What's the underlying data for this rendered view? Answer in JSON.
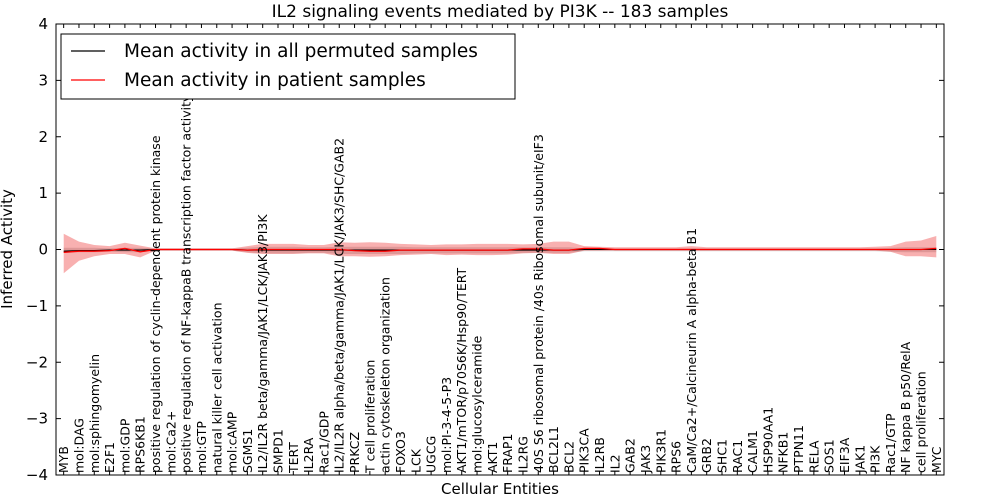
{
  "chart_data": {
    "type": "line",
    "title": "IL2 signaling events mediated by PI3K -- 183 samples",
    "xlabel": "Cellular Entities",
    "ylabel": "Inferred Activity",
    "ylim": [
      -4,
      4
    ],
    "yticks": [
      -4,
      -3,
      -2,
      -1,
      0,
      1,
      2,
      3,
      4
    ],
    "grid": false,
    "legend": {
      "placement": "top-left",
      "entries": [
        {
          "label": "Mean activity in all permuted samples",
          "color": "#000000"
        },
        {
          "label": "Mean activity in patient samples",
          "color": "#ff0000"
        }
      ]
    },
    "categories": [
      "MYB",
      "mol:DAG",
      "mol:sphingomyelin",
      "E2F1",
      "mol:GDP",
      "RPS6KB1",
      "positive regulation of cyclin-dependent protein kinase",
      "mol:Ca2+",
      "positive regulation of NF-kappaB transcription factor activity",
      "mol:GTP",
      "natural killer cell activation",
      "mol:cAMP",
      "SGMS1",
      "IL2/IL2R beta/gamma/JAK1/LCK/JAK3/PI3K",
      "SMPD1",
      "TERT",
      "IL2RA",
      "Rac1/GDP",
      "IL2/IL2R alpha/beta/gamma/JAK1/LCK/JAK3/SHC/GAB2",
      "PRKCZ",
      "T cell proliferation",
      "actin cytoskeleton organization",
      "FOXO3",
      "LCK",
      "UGCG",
      "mol:PI-3-4-5-P3",
      "AKT1/mTOR/p70S6K/Hsp90/TERT",
      "mol:glucosylceramide",
      "AKT1",
      "FRAP1",
      "IL2RG",
      "40S S6 ribosomal protein /40s Ribosomal subunit/eIF3",
      "BCL2L1",
      "BCL2",
      "PIK3CA",
      "IL2RB",
      "IL2",
      "GAB2",
      "JAK3",
      "PIK3R1",
      "RPS6",
      "CaM/Ca2+/Calcineurin A alpha-beta B1",
      "GRB2",
      "SHC1",
      "RAC1",
      "CALM1",
      "HSP90AA1",
      "NFKB1",
      "PTPN11",
      "RELA",
      "SOS1",
      "EIF3A",
      "JAK1",
      "PI3K",
      "Rac1/GTP",
      "NF kappa B p50/RelA",
      "cell proliferation",
      "MYC"
    ],
    "series": [
      {
        "name": "Mean activity in all permuted samples",
        "color": "#000000",
        "values": [
          -0.03,
          -0.02,
          -0.02,
          -0.01,
          -0.01,
          -0.01,
          0,
          0,
          0,
          0,
          0,
          0,
          -0.01,
          -0.01,
          -0.01,
          -0.01,
          -0.01,
          -0.01,
          -0.01,
          -0.01,
          -0.01,
          -0.01,
          -0.01,
          -0.01,
          -0.01,
          -0.01,
          -0.01,
          -0.01,
          -0.01,
          -0.01,
          -0.01,
          -0.01,
          -0.01,
          -0.01,
          0,
          0,
          0,
          0,
          0,
          0,
          0,
          0,
          0,
          0,
          0,
          0,
          0,
          0,
          0,
          0,
          0,
          0,
          0,
          0,
          0,
          0,
          0,
          0
        ],
        "band_low": [
          -0.06,
          -0.05,
          -0.05,
          -0.04,
          -0.05,
          -0.05,
          -0.02,
          -0.02,
          -0.02,
          -0.02,
          -0.02,
          -0.02,
          -0.05,
          -0.07,
          -0.07,
          -0.07,
          -0.06,
          -0.06,
          -0.08,
          -0.08,
          -0.08,
          -0.08,
          -0.08,
          -0.07,
          -0.07,
          -0.07,
          -0.07,
          -0.07,
          -0.07,
          -0.07,
          -0.06,
          -0.06,
          -0.06,
          -0.06,
          -0.03,
          -0.03,
          -0.03,
          -0.03,
          -0.03,
          -0.03,
          -0.03,
          -0.03,
          -0.03,
          -0.03,
          -0.03,
          -0.03,
          -0.03,
          -0.03,
          -0.03,
          -0.03,
          -0.03,
          -0.03,
          -0.03,
          -0.03,
          -0.04,
          -0.05,
          -0.05,
          -0.05
        ],
        "band_high": [
          0.03,
          0.03,
          0.03,
          0.02,
          0.03,
          0.03,
          0.02,
          0.02,
          0.02,
          0.02,
          0.02,
          0.02,
          0.03,
          0.05,
          0.05,
          0.05,
          0.04,
          0.04,
          0.05,
          0.05,
          0.05,
          0.05,
          0.05,
          0.04,
          0.04,
          0.04,
          0.04,
          0.04,
          0.04,
          0.04,
          0.04,
          0.04,
          0.04,
          0.04,
          0.02,
          0.02,
          0.02,
          0.02,
          0.02,
          0.02,
          0.02,
          0.02,
          0.02,
          0.02,
          0.02,
          0.02,
          0.02,
          0.02,
          0.02,
          0.02,
          0.02,
          0.02,
          0.02,
          0.02,
          0.03,
          0.04,
          0.04,
          0.04
        ]
      },
      {
        "name": "Mean activity in patient samples",
        "color": "#ff0000",
        "values": [
          -0.05,
          -0.03,
          -0.03,
          -0.02,
          0.02,
          -0.04,
          0,
          0,
          0,
          0,
          0,
          0,
          -0.01,
          0,
          0,
          0,
          0,
          0,
          0,
          -0.02,
          -0.03,
          -0.03,
          -0.01,
          -0.01,
          -0.01,
          -0.01,
          -0.01,
          -0.01,
          -0.01,
          -0.01,
          0.01,
          0.01,
          -0.01,
          -0.01,
          0.02,
          0.02,
          0,
          0,
          0,
          0,
          0,
          0,
          0,
          0,
          0,
          0,
          0,
          0,
          0,
          0,
          0,
          0,
          0,
          0,
          0,
          0,
          0,
          0.02
        ],
        "band_low": [
          -0.42,
          -0.2,
          -0.12,
          -0.08,
          -0.08,
          -0.14,
          -0.02,
          -0.02,
          -0.02,
          -0.02,
          -0.02,
          -0.02,
          -0.06,
          -0.08,
          -0.08,
          -0.08,
          -0.07,
          -0.07,
          -0.12,
          -0.12,
          -0.13,
          -0.12,
          -0.1,
          -0.09,
          -0.08,
          -0.1,
          -0.09,
          -0.1,
          -0.1,
          -0.09,
          -0.07,
          -0.06,
          -0.08,
          -0.08,
          -0.02,
          -0.02,
          -0.02,
          -0.02,
          -0.02,
          -0.02,
          -0.02,
          -0.02,
          -0.02,
          -0.02,
          -0.02,
          -0.02,
          -0.02,
          -0.02,
          -0.02,
          -0.02,
          -0.02,
          -0.02,
          -0.02,
          -0.02,
          -0.04,
          -0.12,
          -0.12,
          -0.14
        ],
        "band_high": [
          0.28,
          0.14,
          0.08,
          0.06,
          0.12,
          0.07,
          0.02,
          0.02,
          0.02,
          0.02,
          0.02,
          0.02,
          0.06,
          0.1,
          0.1,
          0.1,
          0.08,
          0.08,
          0.13,
          0.12,
          0.13,
          0.12,
          0.1,
          0.09,
          0.08,
          0.09,
          0.09,
          0.1,
          0.1,
          0.1,
          0.09,
          0.1,
          0.14,
          0.14,
          0.06,
          0.05,
          0.04,
          0.04,
          0.04,
          0.04,
          0.04,
          0.06,
          0.04,
          0.04,
          0.04,
          0.04,
          0.04,
          0.04,
          0.04,
          0.04,
          0.04,
          0.04,
          0.04,
          0.05,
          0.06,
          0.14,
          0.16,
          0.24
        ]
      }
    ]
  }
}
